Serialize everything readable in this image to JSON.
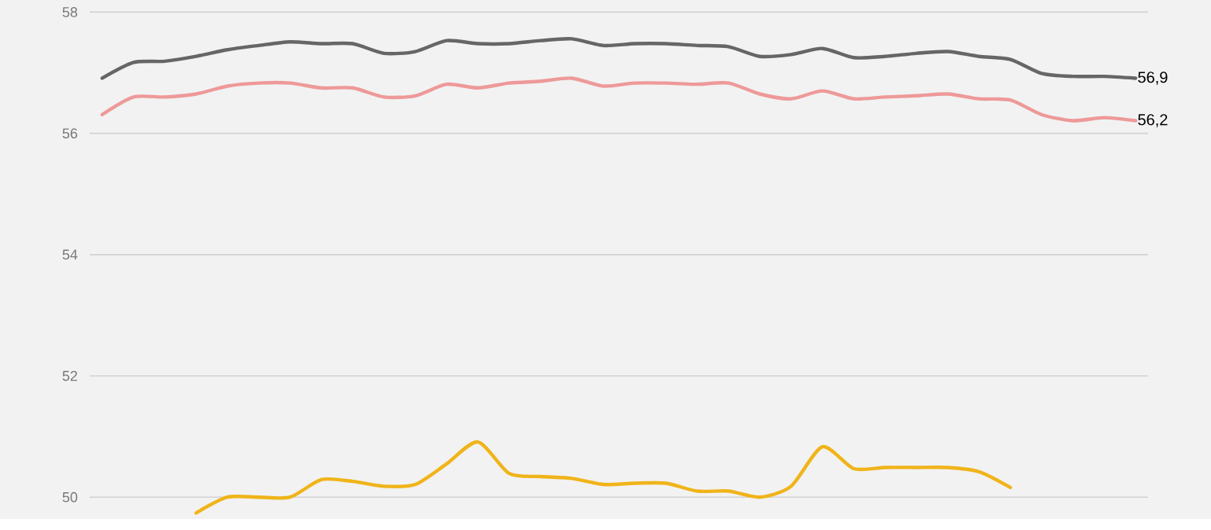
{
  "chart_data": {
    "type": "line",
    "categories": [
      null,
      null,
      null,
      null,
      null,
      null,
      null,
      null,
      null,
      null,
      null,
      null,
      null,
      null,
      null,
      null,
      null,
      null,
      null,
      null,
      null,
      null,
      null,
      null,
      null,
      null,
      null,
      null,
      null,
      null,
      null,
      null,
      null,
      null
    ],
    "series": [
      {
        "color": "#666666",
        "values": [
          56.91,
          57.17,
          57.19,
          57.27,
          57.38,
          57.45,
          57.51,
          57.48,
          57.48,
          57.32,
          57.35,
          57.53,
          57.48,
          57.48,
          57.53,
          57.56,
          57.45,
          57.48,
          57.48,
          57.45,
          57.43,
          57.27,
          57.3,
          57.4,
          57.25,
          57.27,
          57.32,
          57.35,
          57.27,
          57.22,
          56.99,
          56.94,
          56.94,
          56.91
        ],
        "value_labels": [
          null,
          null,
          null,
          null,
          null,
          null,
          null,
          null,
          null,
          null,
          null,
          null,
          null,
          null,
          null,
          null,
          null,
          null,
          null,
          null,
          null,
          null,
          null,
          null,
          null,
          null,
          null,
          null,
          null,
          null,
          null,
          null,
          null,
          "56,9"
        ]
      },
      {
        "color": "#ee9999",
        "values": [
          56.31,
          56.6,
          56.6,
          56.65,
          56.78,
          56.83,
          56.83,
          56.75,
          56.75,
          56.6,
          56.62,
          56.81,
          56.75,
          56.83,
          56.86,
          56.91,
          56.78,
          56.83,
          56.83,
          56.81,
          56.83,
          56.65,
          56.57,
          56.7,
          56.57,
          56.6,
          56.62,
          56.65,
          56.57,
          56.55,
          56.31,
          56.21,
          56.26,
          56.21
        ],
        "value_labels": [
          null,
          null,
          null,
          null,
          null,
          null,
          null,
          null,
          null,
          null,
          null,
          null,
          null,
          null,
          null,
          null,
          null,
          null,
          null,
          null,
          null,
          null,
          null,
          null,
          null,
          null,
          null,
          null,
          null,
          null,
          null,
          null,
          null,
          "56,2"
        ]
      },
      {
        "color": "#f0b41a",
        "values": [
          null,
          null,
          null,
          49.74,
          50.0,
          50.0,
          50.0,
          50.29,
          50.26,
          50.18,
          50.21,
          50.55,
          50.91,
          50.39,
          50.34,
          50.31,
          50.21,
          50.23,
          50.23,
          50.1,
          50.1,
          50.0,
          50.18,
          50.83,
          50.47,
          50.49,
          50.49,
          50.49,
          50.42,
          50.16,
          null,
          null,
          null,
          null
        ]
      }
    ],
    "ylim": [
      49.64,
      58.2
    ],
    "yticks": [
      50,
      52,
      54,
      56,
      58
    ],
    "grid": "y",
    "tick_labels": "y"
  }
}
